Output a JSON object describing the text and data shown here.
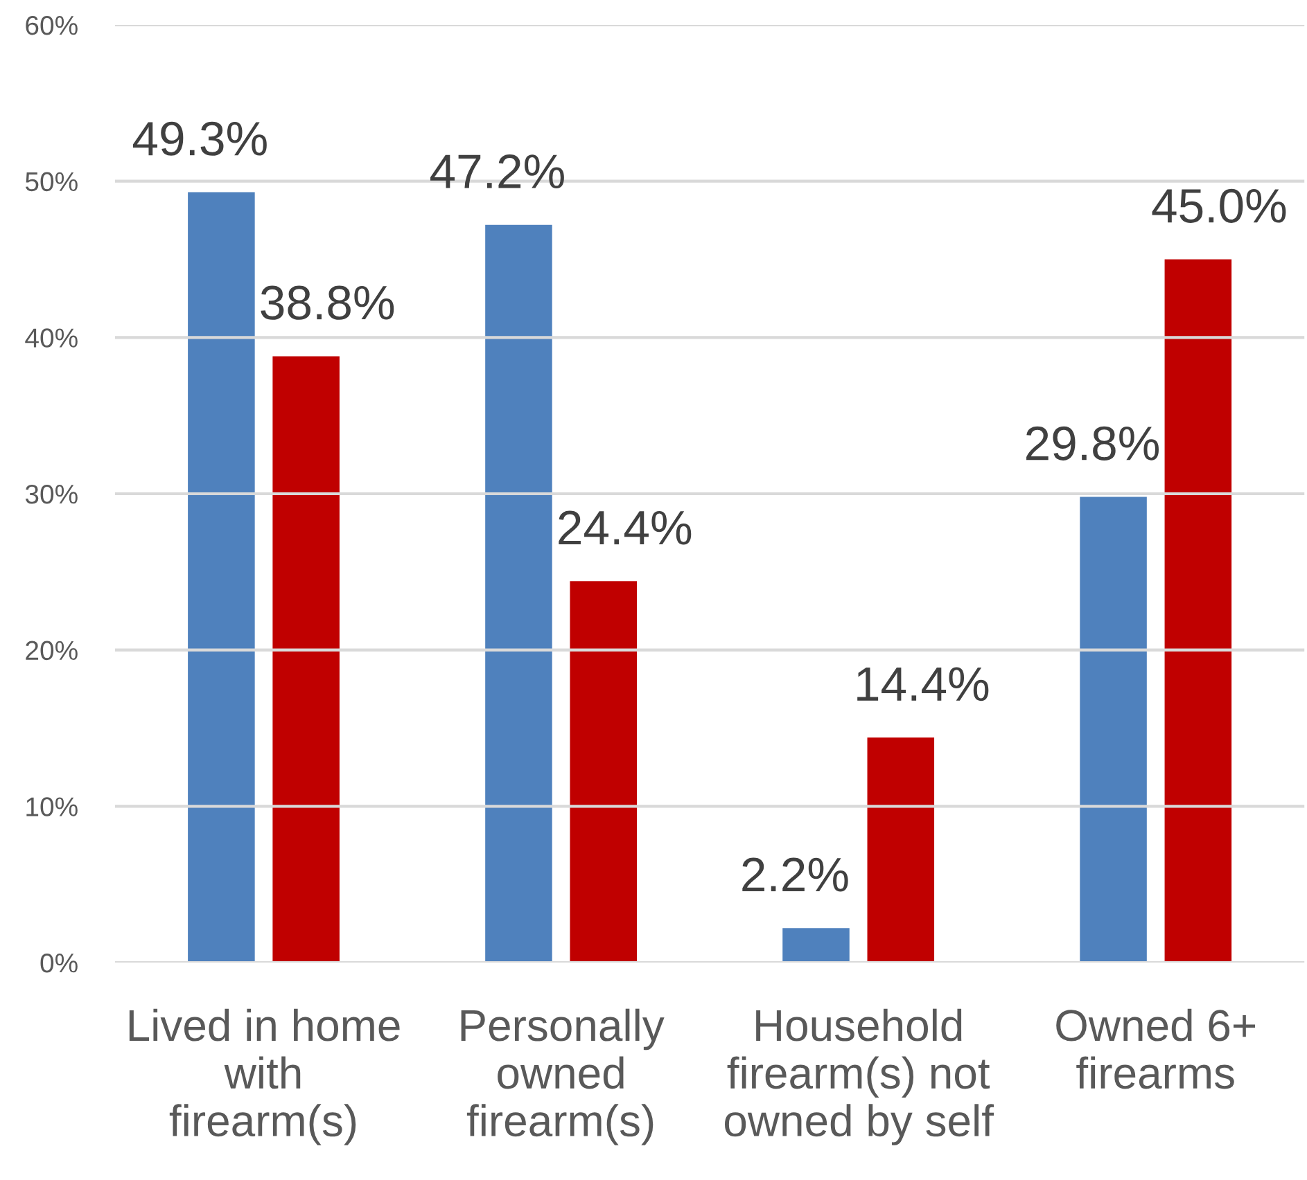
{
  "chart_data": {
    "type": "bar",
    "categories": [
      "Lived in home\nwith\nfirearm(s)",
      "Personally\nowned\nfirearm(s)",
      "Household\nfirearm(s) not\nowned by self",
      "Owned 6+\nfirearms"
    ],
    "series": [
      {
        "color": "#4f81bd",
        "values": [
          49.3,
          47.2,
          2.2,
          29.8
        ],
        "value_labels": [
          "49.3%",
          "47.2%",
          "2.2%",
          "29.8%"
        ]
      },
      {
        "color": "#c00000",
        "values": [
          38.8,
          24.4,
          14.4,
          45.0
        ],
        "value_labels": [
          "38.8%",
          "24.4%",
          "14.4%",
          "45.0%"
        ]
      }
    ],
    "ylim": [
      0,
      60
    ],
    "yticks": [
      {
        "value": 0,
        "label": "0%"
      },
      {
        "value": 10,
        "label": "10%"
      },
      {
        "value": 20,
        "label": "20%"
      },
      {
        "value": 30,
        "label": "30%"
      },
      {
        "value": 40,
        "label": "40%"
      },
      {
        "value": 50,
        "label": "50%"
      },
      {
        "value": 60,
        "label": "60%"
      }
    ],
    "grid": "y"
  }
}
